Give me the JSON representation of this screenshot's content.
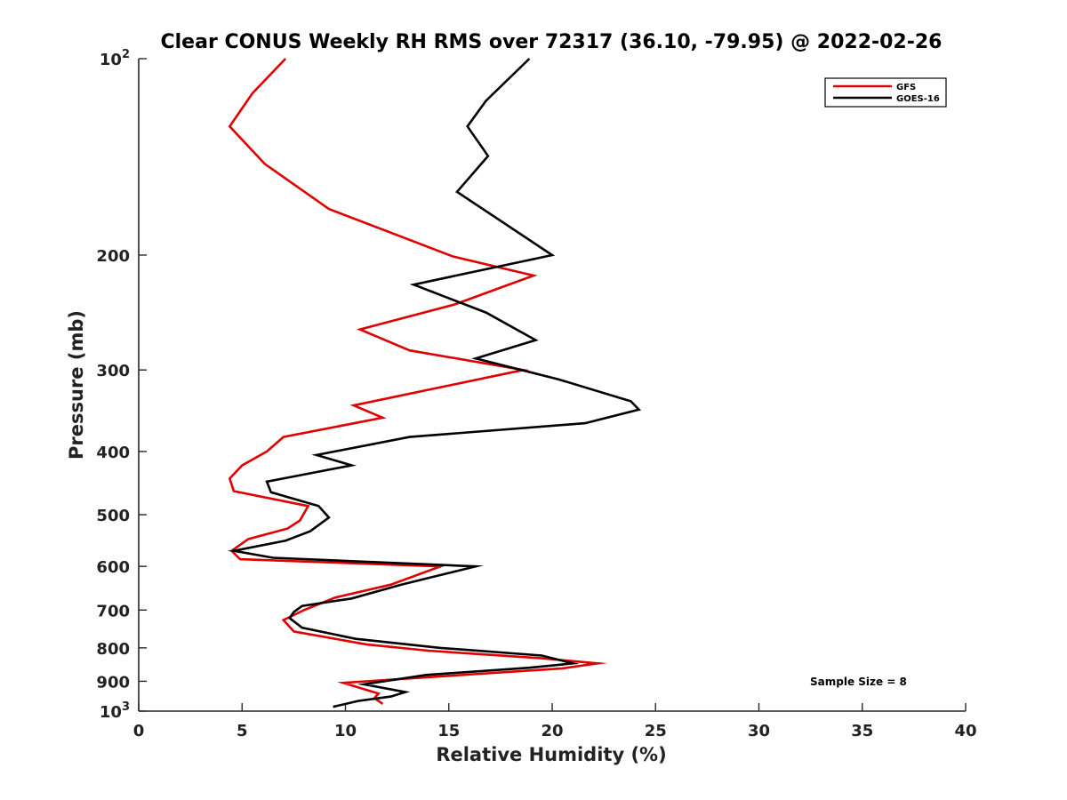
{
  "chart_data": {
    "type": "line",
    "title": "Clear CONUS Weekly RH RMS over 72317 (36.10, -79.95) @ 2022-02-26",
    "xlabel": "Relative Humidity (%)",
    "ylabel": "Pressure (mb)",
    "xlim": [
      0,
      40
    ],
    "ylim": [
      100,
      1000
    ],
    "y_scale": "log",
    "y_reversed": true,
    "grid": false,
    "legend_position": "top-right",
    "x_ticks": [
      "0",
      "5",
      "10",
      "15",
      "20",
      "25",
      "30",
      "35",
      "40"
    ],
    "y_ticks": [
      {
        "value": 100,
        "base": "10",
        "exp": "2"
      },
      {
        "value": 200,
        "label": "200"
      },
      {
        "value": 300,
        "label": "300"
      },
      {
        "value": 400,
        "label": "400"
      },
      {
        "value": 500,
        "label": "500"
      },
      {
        "value": 600,
        "label": "600"
      },
      {
        "value": 700,
        "label": "700"
      },
      {
        "value": 800,
        "label": "800"
      },
      {
        "value": 900,
        "label": "900"
      },
      {
        "value": 1000,
        "base": "10",
        "exp": "3"
      }
    ],
    "annotation": "Sample Size = 8",
    "series": [
      {
        "name": "GFS",
        "color": "#e00000",
        "points": [
          [
            7.1,
            100
          ],
          [
            5.5,
            113
          ],
          [
            4.4,
            127
          ],
          [
            6.1,
            145
          ],
          [
            9.2,
            170
          ],
          [
            15.2,
            201
          ],
          [
            19.1,
            215
          ],
          [
            15.3,
            238
          ],
          [
            10.7,
            260
          ],
          [
            13.1,
            280
          ],
          [
            18.6,
            300
          ],
          [
            10.4,
            340
          ],
          [
            11.8,
            355
          ],
          [
            7.0,
            380
          ],
          [
            6.2,
            400
          ],
          [
            5.0,
            420
          ],
          [
            4.4,
            440
          ],
          [
            4.6,
            460
          ],
          [
            8.2,
            485
          ],
          [
            7.8,
            510
          ],
          [
            7.2,
            525
          ],
          [
            5.3,
            545
          ],
          [
            4.5,
            568
          ],
          [
            4.9,
            585
          ],
          [
            14.6,
            600
          ],
          [
            12.2,
            640
          ],
          [
            9.5,
            670
          ],
          [
            8.0,
            700
          ],
          [
            7.0,
            725
          ],
          [
            7.5,
            755
          ],
          [
            11.0,
            790
          ],
          [
            14.0,
            808
          ],
          [
            19.5,
            830
          ],
          [
            22.2,
            845
          ],
          [
            20.5,
            860
          ],
          [
            14.5,
            885
          ],
          [
            9.9,
            905
          ],
          [
            11.6,
            940
          ],
          [
            11.4,
            955
          ],
          [
            11.8,
            975
          ]
        ]
      },
      {
        "name": "GOES-16",
        "color": "#000000",
        "points": [
          [
            18.9,
            100
          ],
          [
            16.8,
            116
          ],
          [
            15.9,
            127
          ],
          [
            16.9,
            141
          ],
          [
            15.4,
            160
          ],
          [
            20.0,
            200
          ],
          [
            13.3,
            222
          ],
          [
            16.8,
            245
          ],
          [
            19.2,
            270
          ],
          [
            16.3,
            288
          ],
          [
            20.3,
            310
          ],
          [
            23.8,
            335
          ],
          [
            24.2,
            345
          ],
          [
            21.6,
            362
          ],
          [
            13.1,
            380
          ],
          [
            8.6,
            405
          ],
          [
            10.3,
            420
          ],
          [
            6.2,
            445
          ],
          [
            6.4,
            462
          ],
          [
            8.7,
            485
          ],
          [
            9.2,
            505
          ],
          [
            8.3,
            530
          ],
          [
            7.1,
            548
          ],
          [
            4.6,
            568
          ],
          [
            6.5,
            582
          ],
          [
            16.3,
            600
          ],
          [
            15.2,
            612
          ],
          [
            12.7,
            640
          ],
          [
            10.3,
            672
          ],
          [
            7.9,
            690
          ],
          [
            7.5,
            705
          ],
          [
            7.3,
            720
          ],
          [
            7.9,
            745
          ],
          [
            10.5,
            775
          ],
          [
            14.6,
            800
          ],
          [
            19.5,
            822
          ],
          [
            21.0,
            845
          ],
          [
            18.9,
            858
          ],
          [
            13.9,
            880
          ],
          [
            10.9,
            910
          ],
          [
            12.9,
            935
          ],
          [
            12.2,
            950
          ],
          [
            10.6,
            965
          ],
          [
            9.4,
            985
          ]
        ]
      }
    ]
  }
}
